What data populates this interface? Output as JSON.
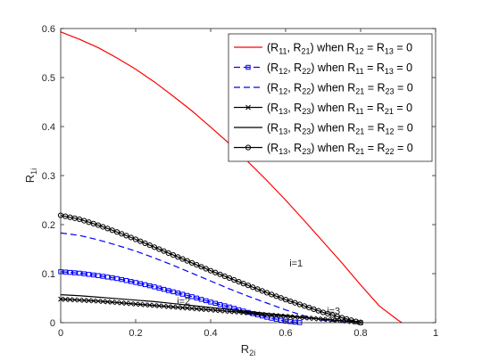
{
  "chart_data": {
    "type": "line",
    "xlabel": "R",
    "xlabel_sub": "2i",
    "ylabel": "R",
    "ylabel_sub": "1i",
    "xlim": [
      0,
      1
    ],
    "ylim": [
      0,
      0.6
    ],
    "xticks": [
      0,
      0.2,
      0.4,
      0.6,
      0.8,
      1
    ],
    "xtick_labels": [
      "0",
      "0.2",
      "0.4",
      "0.6",
      "0.8",
      "1"
    ],
    "yticks": [
      0,
      0.1,
      0.2,
      0.3,
      0.4,
      0.5,
      0.6
    ],
    "ytick_labels": [
      "0",
      "0.1",
      "0.2",
      "0.3",
      "0.4",
      "0.5",
      "0.6"
    ],
    "grid": false,
    "legend_position": "top-right",
    "series": [
      {
        "legend": [
          [
            "(R",
            ""
          ],
          [
            "11",
            "sub"
          ],
          [
            ", R",
            ""
          ],
          [
            "21",
            "sub"
          ],
          [
            ") when R",
            ""
          ],
          [
            "12",
            "sub"
          ],
          [
            " = R",
            ""
          ],
          [
            "13",
            "sub"
          ],
          [
            " = 0",
            ""
          ]
        ],
        "color": "#ff0000",
        "dash": "solid",
        "marker": "none",
        "x": [
          0,
          0.05,
          0.1,
          0.15,
          0.2,
          0.25,
          0.3,
          0.35,
          0.4,
          0.45,
          0.5,
          0.55,
          0.6,
          0.65,
          0.7,
          0.75,
          0.8,
          0.85,
          0.9,
          0.91
        ],
        "y": [
          0.593,
          0.578,
          0.561,
          0.54,
          0.517,
          0.491,
          0.462,
          0.432,
          0.399,
          0.365,
          0.328,
          0.29,
          0.25,
          0.208,
          0.165,
          0.122,
          0.077,
          0.034,
          0.005,
          0
        ]
      },
      {
        "legend": [
          [
            "(R",
            ""
          ],
          [
            "12",
            "sub"
          ],
          [
            ", R",
            ""
          ],
          [
            "22",
            "sub"
          ],
          [
            ") when R",
            ""
          ],
          [
            "11",
            "sub"
          ],
          [
            " = R",
            ""
          ],
          [
            "13",
            "sub"
          ],
          [
            " = 0",
            ""
          ]
        ],
        "color": "#0000ff",
        "dash": "dashed",
        "marker": "square",
        "x": [
          0,
          0.05,
          0.1,
          0.15,
          0.2,
          0.25,
          0.3,
          0.35,
          0.4,
          0.45,
          0.5,
          0.55,
          0.6,
          0.64
        ],
        "y": [
          0.104,
          0.101,
          0.096,
          0.09,
          0.082,
          0.073,
          0.063,
          0.053,
          0.042,
          0.032,
          0.021,
          0.011,
          0.003,
          0
        ]
      },
      {
        "legend": [
          [
            "(R",
            ""
          ],
          [
            "12",
            "sub"
          ],
          [
            ", R",
            ""
          ],
          [
            "22",
            "sub"
          ],
          [
            ") when R",
            ""
          ],
          [
            "21",
            "sub"
          ],
          [
            " = R",
            ""
          ],
          [
            "23",
            "sub"
          ],
          [
            " = 0",
            ""
          ]
        ],
        "color": "#0000ff",
        "dash": "dashed",
        "marker": "none",
        "x": [
          0,
          0.05,
          0.1,
          0.15,
          0.2,
          0.25,
          0.3,
          0.35,
          0.4,
          0.45,
          0.5,
          0.55,
          0.6,
          0.65,
          0.7,
          0.75,
          0.78
        ],
        "y": [
          0.183,
          0.178,
          0.169,
          0.158,
          0.146,
          0.132,
          0.117,
          0.101,
          0.085,
          0.069,
          0.054,
          0.04,
          0.026,
          0.014,
          0.005,
          0.001,
          0
        ]
      },
      {
        "legend": [
          [
            "(R",
            ""
          ],
          [
            "13",
            "sub"
          ],
          [
            ", R",
            ""
          ],
          [
            "23",
            "sub"
          ],
          [
            ") when R",
            ""
          ],
          [
            "11",
            "sub"
          ],
          [
            " = R",
            ""
          ],
          [
            "21",
            "sub"
          ],
          [
            " = 0",
            ""
          ]
        ],
        "color": "#000000",
        "dash": "solid",
        "marker": "x",
        "x": [
          0,
          0.05,
          0.1,
          0.15,
          0.2,
          0.25,
          0.3,
          0.35,
          0.4,
          0.45,
          0.5,
          0.55,
          0.6,
          0.65,
          0.7,
          0.75,
          0.8
        ],
        "y": [
          0.048,
          0.046,
          0.044,
          0.041,
          0.038,
          0.035,
          0.032,
          0.029,
          0.026,
          0.023,
          0.02,
          0.016,
          0.013,
          0.01,
          0.007,
          0.004,
          0
        ]
      },
      {
        "legend": [
          [
            "(R",
            ""
          ],
          [
            "13",
            "sub"
          ],
          [
            ", R",
            ""
          ],
          [
            "23",
            "sub"
          ],
          [
            ") when R",
            ""
          ],
          [
            "21",
            "sub"
          ],
          [
            " = R",
            ""
          ],
          [
            "12",
            "sub"
          ],
          [
            " = 0",
            ""
          ]
        ],
        "color": "#000000",
        "dash": "solid",
        "marker": "none",
        "x": [
          0,
          0.05,
          0.1,
          0.15,
          0.2,
          0.25,
          0.3,
          0.35,
          0.4,
          0.45,
          0.5,
          0.55,
          0.6,
          0.65,
          0.7,
          0.75,
          0.8
        ],
        "y": [
          0.057,
          0.055,
          0.052,
          0.049,
          0.046,
          0.043,
          0.039,
          0.035,
          0.031,
          0.027,
          0.023,
          0.019,
          0.015,
          0.011,
          0.007,
          0.004,
          0
        ]
      },
      {
        "legend": [
          [
            "(R",
            ""
          ],
          [
            "13",
            "sub"
          ],
          [
            ", R",
            ""
          ],
          [
            "23",
            "sub"
          ],
          [
            ") when R",
            ""
          ],
          [
            "21",
            "sub"
          ],
          [
            " = R",
            ""
          ],
          [
            "22",
            "sub"
          ],
          [
            " = 0",
            ""
          ]
        ],
        "color": "#000000",
        "dash": "solid",
        "marker": "circle",
        "x": [
          0,
          0.05,
          0.1,
          0.15,
          0.2,
          0.25,
          0.3,
          0.35,
          0.4,
          0.45,
          0.5,
          0.55,
          0.6,
          0.65,
          0.7,
          0.75,
          0.8
        ],
        "y": [
          0.219,
          0.211,
          0.199,
          0.185,
          0.17,
          0.154,
          0.138,
          0.122,
          0.106,
          0.091,
          0.076,
          0.061,
          0.047,
          0.034,
          0.021,
          0.01,
          0
        ]
      }
    ],
    "annotations": [
      {
        "text": "i=1",
        "x": 0.61,
        "y": 0.115,
        "color": "#ff0000"
      },
      {
        "text": "i=2",
        "x": 0.31,
        "y": 0.037,
        "color": "#0000ff"
      },
      {
        "text": "i=3",
        "x": 0.71,
        "y": 0.017,
        "color": "#000000"
      }
    ]
  }
}
